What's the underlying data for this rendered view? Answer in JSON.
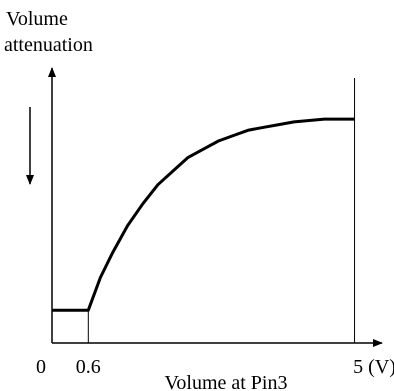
{
  "chart_data": {
    "type": "line",
    "ylabel_lines": [
      "Volume",
      "attenuation"
    ],
    "xlabel": "Volume at Pin3",
    "x_origin_label": "0",
    "x_tick_labels": [
      "0.6",
      "5 (V)"
    ],
    "x_ticks": [
      0.6,
      5
    ],
    "xlim": [
      0,
      5.3
    ],
    "ylim": [
      0,
      1
    ],
    "direction_arrow": "down",
    "series": [
      {
        "x": [
          0,
          0.6,
          0.8,
          1.0,
          1.25,
          1.5,
          1.75,
          2.0,
          2.25,
          2.5,
          2.75,
          3.0,
          3.25,
          3.5,
          3.75,
          4.0,
          4.25,
          4.5,
          4.75,
          5.0
        ],
        "y": [
          0.12,
          0.12,
          0.24,
          0.33,
          0.43,
          0.51,
          0.58,
          0.63,
          0.68,
          0.71,
          0.74,
          0.76,
          0.78,
          0.79,
          0.8,
          0.81,
          0.815,
          0.82,
          0.82,
          0.82
        ]
      }
    ]
  }
}
